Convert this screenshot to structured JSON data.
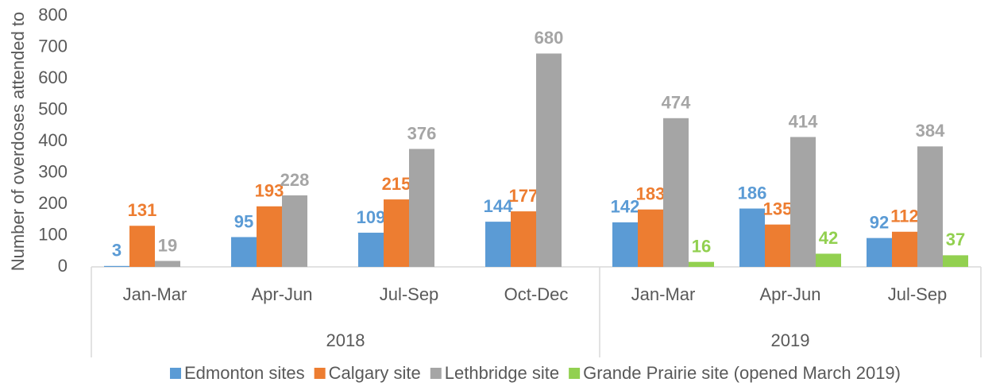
{
  "chart_data": {
    "type": "bar",
    "y_axis_label": "Number of overdoses attended to",
    "groups": [
      {
        "name": "2018",
        "categories": [
          "Jan-Mar",
          "Apr-Jun",
          "Jul-Sep",
          "Oct-Dec"
        ]
      },
      {
        "name": "2019",
        "categories": [
          "Jan-Mar",
          "Apr-Jun",
          "Jul-Sep"
        ]
      }
    ],
    "series": [
      {
        "name": "Edmonton sites",
        "color": "#5b9bd5",
        "values": [
          3,
          95,
          109,
          144,
          142,
          186,
          92
        ]
      },
      {
        "name": "Calgary site",
        "color": "#ed7d31",
        "values": [
          131,
          193,
          215,
          177,
          183,
          135,
          112
        ]
      },
      {
        "name": "Lethbridge site",
        "color": "#a5a5a5",
        "values": [
          19,
          228,
          376,
          680,
          474,
          414,
          384
        ]
      },
      {
        "name": "Grande Prairie site (opened March 2019)",
        "color": "#92d050",
        "values": [
          null,
          null,
          null,
          null,
          16,
          42,
          37
        ]
      }
    ],
    "ylim": [
      0,
      800
    ],
    "yticks": [
      0,
      100,
      200,
      300,
      400,
      500,
      600,
      700,
      800
    ],
    "grid": false,
    "legend": "bottom"
  }
}
